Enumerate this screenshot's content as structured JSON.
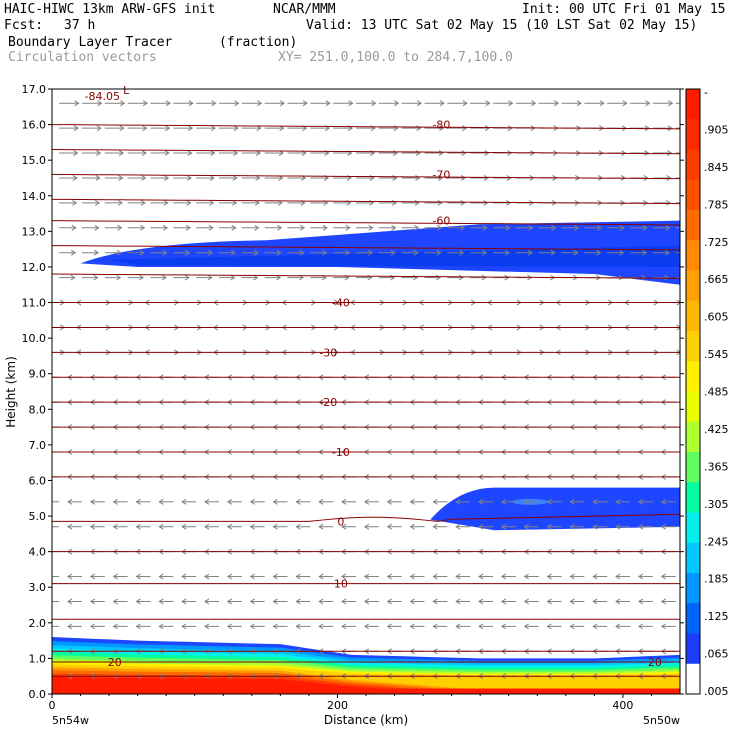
{
  "header": {
    "model": "HAIC-HIWC 13km ARW-GFS init",
    "center": "NCAR/MMM",
    "init": "Init: 00 UTC Fri 01 May 15",
    "fcst_label": "Fcst:",
    "fcst_value": "37 h",
    "valid": "Valid: 13 UTC Sat 02 May 15 (10 LST Sat 02 May 15)",
    "field": "Boundary Layer Tracer",
    "units": "(fraction)",
    "vectors": "Circulation vectors",
    "xy": "XY= 251.0,100.0 to 284.7,100.0"
  },
  "chart_data": {
    "type": "heatmap",
    "xlabel": "Distance (km)",
    "ylabel": "Height (km)",
    "xlim": [
      0,
      440
    ],
    "ylim": [
      0.0,
      17.0
    ],
    "x_ticks": [
      0,
      200,
      400
    ],
    "y_ticks": [
      "0.0",
      "1.0",
      "2.0",
      "3.0",
      "4.0",
      "5.0",
      "6.0",
      "7.0",
      "8.0",
      "9.0",
      "10.0",
      "11.0",
      "12.0",
      "13.0",
      "14.0",
      "15.0",
      "16.0",
      "17.0"
    ],
    "x_endpoint_labels": [
      "5n54w",
      "5n50w"
    ],
    "colorbar_labels": [
      "-",
      ".905",
      ".845",
      ".785",
      ".725",
      ".665",
      ".605",
      ".545",
      ".485",
      ".425",
      ".365",
      ".305",
      ".245",
      ".185",
      ".125",
      ".065",
      ".005"
    ],
    "colorbar_colors": [
      "#ff1a00",
      "#ff2a00",
      "#ff3c00",
      "#ff5000",
      "#ff6a00",
      "#ff8a00",
      "#ffa000",
      "#ffb800",
      "#ffd000",
      "#fff000",
      "#e8ff00",
      "#b0ff30",
      "#60ff60",
      "#00ffa0",
      "#00f0f0",
      "#00c8ff",
      "#0096ff",
      "#0064ff",
      "#1e3cff",
      "#ffffff"
    ],
    "temperature_contours": [
      {
        "label": "-84.05",
        "height": 16.8,
        "x": 8
      },
      {
        "label": "-80",
        "height": 16.0,
        "x": 62
      },
      {
        "label": "-70",
        "height": 14.6,
        "x": 62
      },
      {
        "label": "-60",
        "height": 13.3,
        "x": 62
      },
      {
        "label": "-40",
        "height": 11.0,
        "x": 46
      },
      {
        "label": "-30",
        "height": 9.6,
        "x": 44
      },
      {
        "label": "-20",
        "height": 8.2,
        "x": 44
      },
      {
        "label": "-10",
        "height": 6.8,
        "x": 46
      },
      {
        "label": "0",
        "height": 4.85,
        "x": 46
      },
      {
        "label": "10",
        "height": 3.1,
        "x": 46
      },
      {
        "label": "20",
        "height": 0.9,
        "x": 10
      },
      {
        "label": "20",
        "height": 0.9,
        "x": 96
      }
    ],
    "contour_low_label": "L",
    "upper_tracer_layer": {
      "x_range_km": [
        20,
        440
      ],
      "base_km": 11.9,
      "top_km": 13.2,
      "value": 0.065
    },
    "mid_tracer_layer": {
      "x_range_km": [
        265,
        440
      ],
      "base_km": 4.7,
      "top_km": 5.8,
      "value": 0.065
    },
    "boundary_layer": {
      "depth_km": [
        1.6,
        1.5,
        1.4,
        1.1,
        1.0,
        1.0,
        1.1
      ],
      "x_km": [
        0,
        60,
        160,
        210,
        300,
        380,
        440
      ]
    }
  }
}
